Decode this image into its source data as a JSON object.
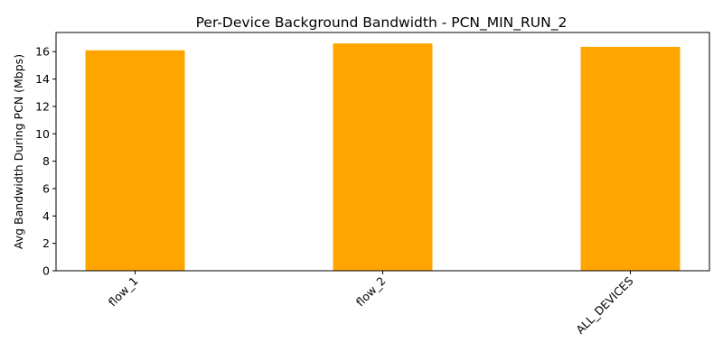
{
  "chart_data": {
    "type": "bar",
    "title": "Per-Device Background Bandwidth - PCN_MIN_RUN_2",
    "xlabel": "",
    "ylabel": "Avg Bandwidth During PCN (Mbps)",
    "categories": [
      "flow_1",
      "flow_2",
      "ALL_DEVICES"
    ],
    "values": [
      16.1,
      16.6,
      16.35
    ],
    "ylim": [
      0,
      17.4
    ],
    "yticks": [
      0,
      2,
      4,
      6,
      8,
      10,
      12,
      14,
      16
    ],
    "bar_color": "#ffa500",
    "grid": false,
    "xtick_rotation": 45
  }
}
